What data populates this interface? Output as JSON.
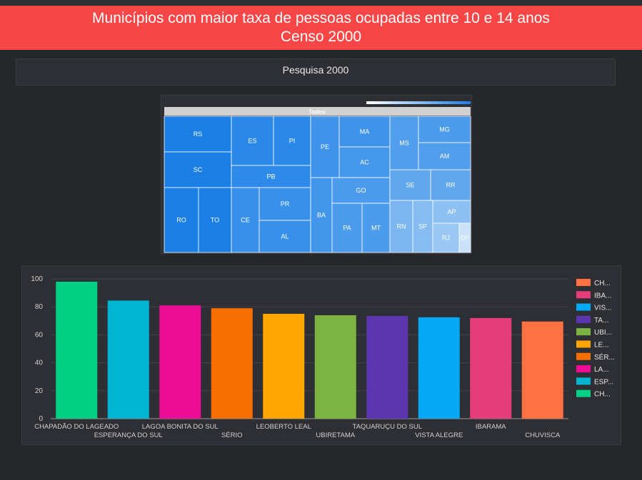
{
  "header": {
    "title_line1": "Municípios com maior taxa de pessoas ocupadas entre 10 e 14 anos",
    "title_line2": "Censo 2000"
  },
  "filter": {
    "label": "Pesquisa 2000"
  },
  "treemap": {
    "root_label": "Todos",
    "cells": [
      {
        "label": "RS",
        "color": "#1b7fe6"
      },
      {
        "label": "SC",
        "color": "#1b7fe6"
      },
      {
        "label": "RO",
        "color": "#1b7fe6"
      },
      {
        "label": "TO",
        "color": "#1b7fe6"
      },
      {
        "label": "ES",
        "color": "#2a88e8"
      },
      {
        "label": "PI",
        "color": "#2a88e8"
      },
      {
        "label": "PB",
        "color": "#2e8ae9"
      },
      {
        "label": "CE",
        "color": "#3990ea"
      },
      {
        "label": "PR",
        "color": "#3990ea"
      },
      {
        "label": "AL",
        "color": "#3990ea"
      },
      {
        "label": "PE",
        "color": "#3f93ea"
      },
      {
        "label": "BA",
        "color": "#4296eb"
      },
      {
        "label": "MA",
        "color": "#3f93ea"
      },
      {
        "label": "AC",
        "color": "#4597eb"
      },
      {
        "label": "GO",
        "color": "#4c9bec"
      },
      {
        "label": "PA",
        "color": "#4c9bec"
      },
      {
        "label": "MT",
        "color": "#4c9bec"
      },
      {
        "label": "MS",
        "color": "#519eed"
      },
      {
        "label": "MG",
        "color": "#4c9bec"
      },
      {
        "label": "AM",
        "color": "#519eed"
      },
      {
        "label": "SE",
        "color": "#60a7ee"
      },
      {
        "label": "RR",
        "color": "#60a7ee"
      },
      {
        "label": "RN",
        "color": "#7bb6f1"
      },
      {
        "label": "SP",
        "color": "#86bcf2"
      },
      {
        "label": "AP",
        "color": "#8dc0f3"
      },
      {
        "label": "RJ",
        "color": "#9ac8f4"
      },
      {
        "label": "DF",
        "color": "#c9e1f9"
      }
    ]
  },
  "chart_data": {
    "type": "bar",
    "categories": [
      "CHAPADÃO DO LAGEADO",
      "ESPERANÇA DO SUL",
      "LAGOA BONITA DO SUL",
      "SÉRIO",
      "LEOBERTO LEAL",
      "UBIRETAMA",
      "TAQUARUÇU DO SUL",
      "VISTA ALEGRE",
      "IBARAMA",
      "CHUVISCA"
    ],
    "values": [
      98,
      84.5,
      81,
      79,
      75,
      74,
      73.5,
      72.5,
      72,
      69.5
    ],
    "colors": [
      "#00d084",
      "#00b5d1",
      "#ef0c95",
      "#f56e00",
      "#ffa500",
      "#7cb342",
      "#5e35b1",
      "#03a9f4",
      "#e53d7a",
      "#ff7043"
    ],
    "ylim": [
      0,
      100
    ],
    "yticks": [
      0,
      20,
      40,
      60,
      80,
      100
    ],
    "grid": true,
    "legend": {
      "placement": "right",
      "items": [
        {
          "label": "CH...",
          "color": "#ff7043"
        },
        {
          "label": "IBA...",
          "color": "#e53d7a"
        },
        {
          "label": "VIS...",
          "color": "#03a9f4"
        },
        {
          "label": "TA...",
          "color": "#5e35b1"
        },
        {
          "label": "UBI...",
          "color": "#7cb342"
        },
        {
          "label": "LE...",
          "color": "#ffa500"
        },
        {
          "label": "SÉR...",
          "color": "#f56e00"
        },
        {
          "label": "LA...",
          "color": "#ef0c95"
        },
        {
          "label": "ESP...",
          "color": "#00b5d1"
        },
        {
          "label": "CH...",
          "color": "#00d084"
        }
      ]
    }
  }
}
